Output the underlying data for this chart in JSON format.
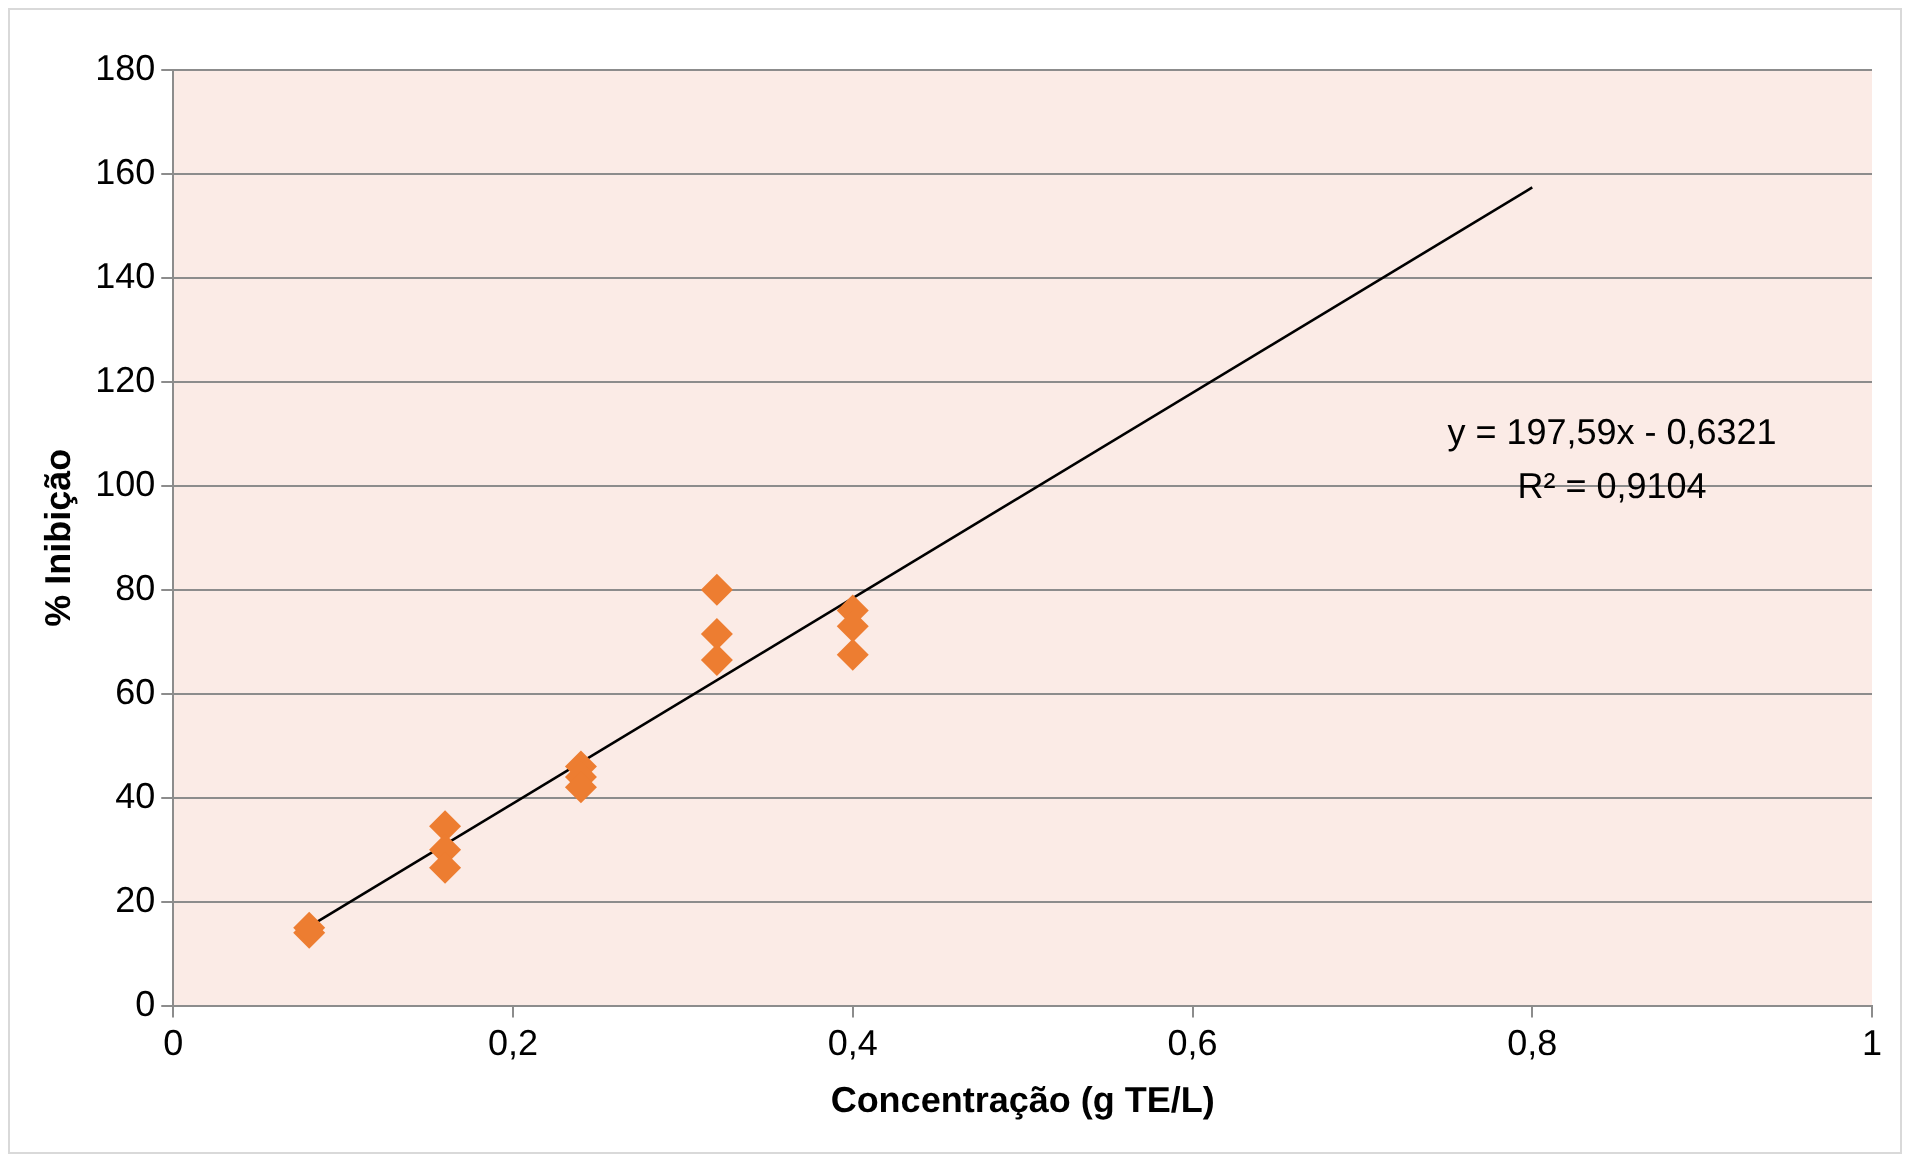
{
  "chart_data": {
    "type": "scatter",
    "xlabel": "Concentração (g TE/L)",
    "ylabel": "% Inibição",
    "series": [
      {
        "type": "scatter",
        "color": "#ed7d31",
        "marker": "diamond",
        "x": [
          0.08,
          0.08,
          0.16,
          0.16,
          0.16,
          0.24,
          0.24,
          0.24,
          0.32,
          0.32,
          0.32,
          0.4,
          0.4,
          0.4
        ],
        "values": [
          14,
          15,
          34.5,
          30,
          26.5,
          46,
          44,
          42,
          80,
          71.5,
          66.5,
          76,
          73,
          67.5
        ]
      },
      {
        "type": "line",
        "color": "#000000",
        "marker": "none",
        "x": [
          0.08,
          0.8
        ],
        "values": [
          15.2,
          157.4
        ]
      }
    ],
    "xlim": [
      0,
      1
    ],
    "xticks": [
      0,
      {
        "value": 0.2,
        "label": "0,2"
      },
      {
        "value": 0.4,
        "label": "0,4"
      },
      {
        "value": 0.6,
        "label": "0,6"
      },
      {
        "value": 0.8,
        "label": "0,8"
      },
      1
    ],
    "ylim": [
      0,
      180
    ],
    "yticks": [
      0,
      20,
      40,
      60,
      80,
      100,
      120,
      140,
      160,
      180
    ],
    "grid": "y",
    "legend": false,
    "annotations": [
      "y = 197,59x - 0,6321",
      "R² = 0,9104"
    ]
  }
}
